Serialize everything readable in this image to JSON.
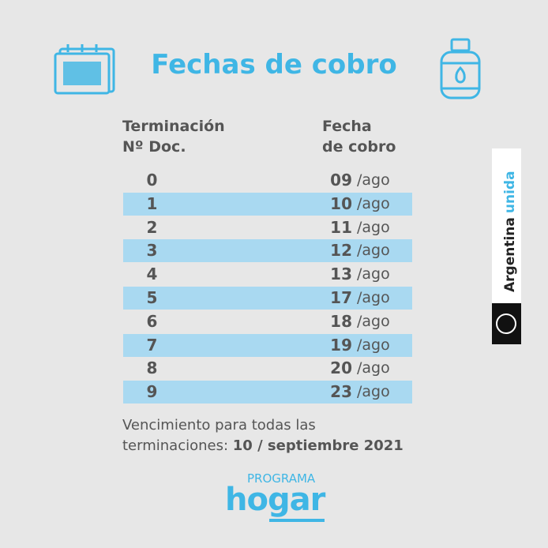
{
  "title": "Fechas de cobro",
  "table": {
    "header": [
      [
        "Terminación",
        "Nº Doc."
      ],
      [
        "Fecha",
        "de cobro"
      ]
    ],
    "rows": [
      [
        "0",
        "09",
        "/ago"
      ],
      [
        "1",
        "10",
        "/ago"
      ],
      [
        "2",
        "11",
        "/ago"
      ],
      [
        "3",
        "12",
        "/ago"
      ],
      [
        "4",
        "13",
        "/ago"
      ],
      [
        "5",
        "17",
        "/ago"
      ],
      [
        "6",
        "18",
        "/ago"
      ],
      [
        "7",
        "19",
        "/ago"
      ],
      [
        "8",
        "20",
        "/ago"
      ],
      [
        "9",
        "23",
        "/ago"
      ]
    ]
  },
  "footer": {
    "line1": "Vencimiento para todas las",
    "line2": "terminaciones:",
    "date": "10 / septiembre 2021"
  },
  "logo": {
    "program": "PROGRAMA",
    "name": "hog",
    "name_end": "ar"
  },
  "badge": {
    "word1": "Argentina",
    "word2": "unida"
  }
}
